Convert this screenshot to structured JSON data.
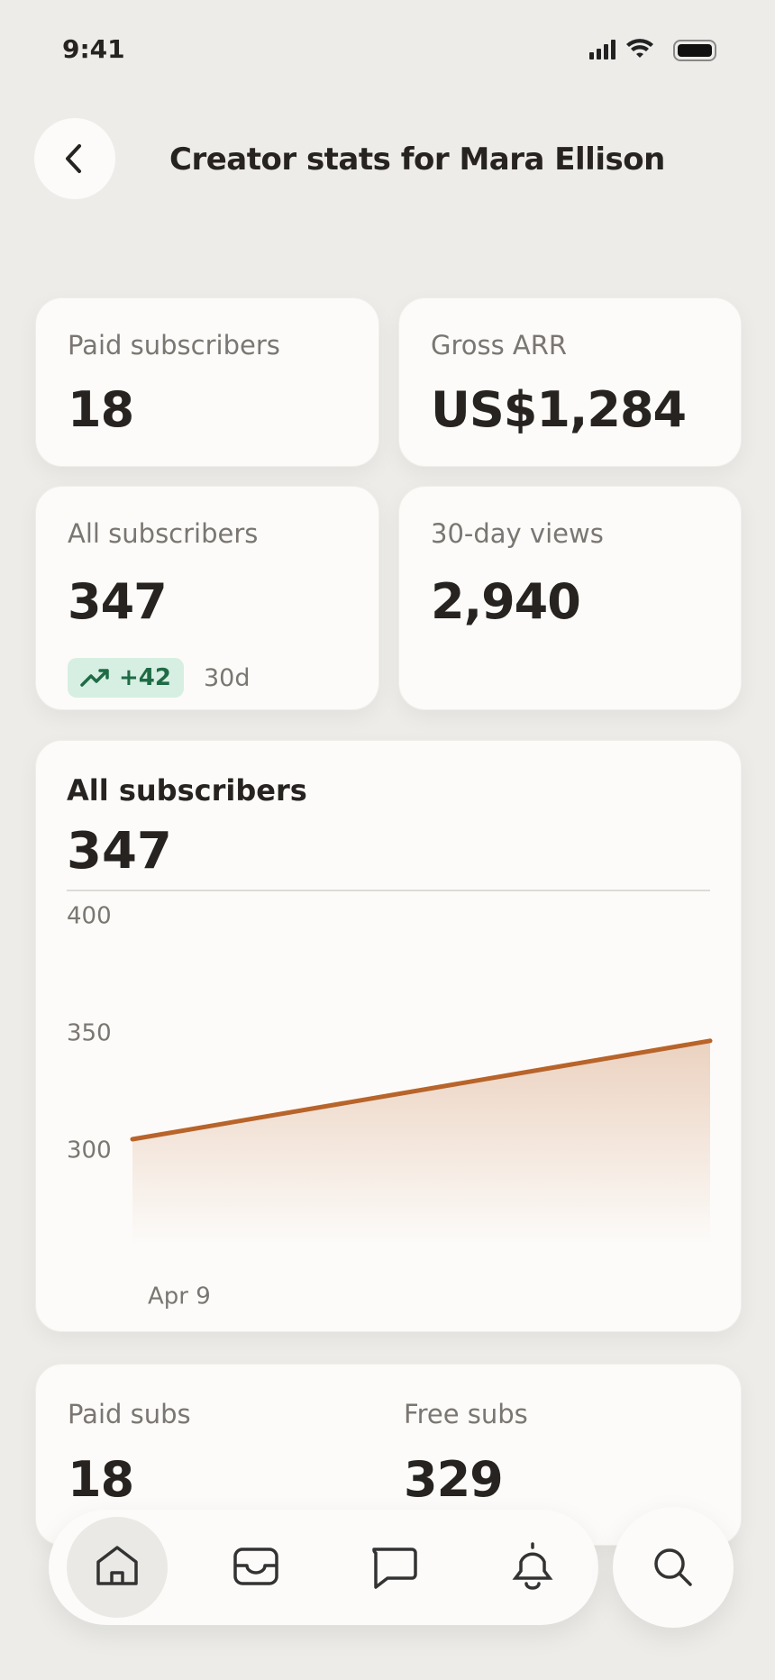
{
  "status_bar": {
    "time": "9:41"
  },
  "header": {
    "title": "Creator stats for Mara Ellison"
  },
  "stats": [
    {
      "label": "Paid subscribers",
      "value": "18"
    },
    {
      "label": "Gross ARR",
      "value": "US$1,284"
    },
    {
      "label": "All subscribers",
      "value": "347",
      "change": "+42",
      "period": "30d"
    },
    {
      "label": "30-day views",
      "value": "2,940"
    }
  ],
  "chart_data": {
    "type": "line",
    "title": "All subscribers",
    "subtitle": "347",
    "categories": [
      "Apr 9",
      null
    ],
    "values": [
      305,
      347
    ],
    "color": "#b8642a",
    "ylim": [
      260,
      400
    ],
    "yticks": [
      300,
      350,
      400
    ],
    "grid": false
  },
  "split": [
    {
      "label": "Paid subs",
      "value": "18"
    },
    {
      "label": "Free subs",
      "value": "329"
    }
  ]
}
